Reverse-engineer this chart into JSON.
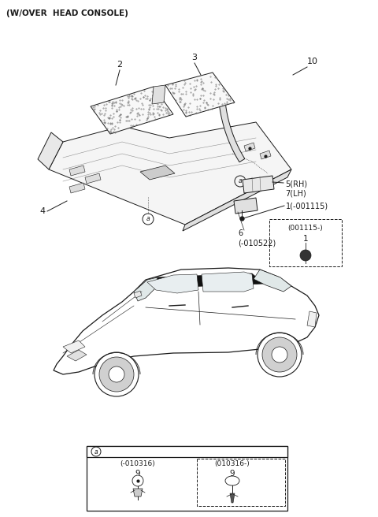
{
  "title": "(W/OVER  HEAD CONSOLE)",
  "bg_color": "#ffffff",
  "fig_width": 4.8,
  "fig_height": 6.56,
  "dpi": 100,
  "labels": {
    "part2": "2",
    "part3": "3",
    "part4": "4",
    "part10": "10",
    "part5": "5(RH)\n7(LH)",
    "part1": "1(-001115)",
    "part6": "6\n(-010522)",
    "part6b_label": "(001115-)",
    "part6b_num": "1",
    "label_a": "a",
    "part9a_label": "(-010316)",
    "part9a_num": "9",
    "part9b_label": "(010316-)",
    "part9b_num": "9"
  }
}
